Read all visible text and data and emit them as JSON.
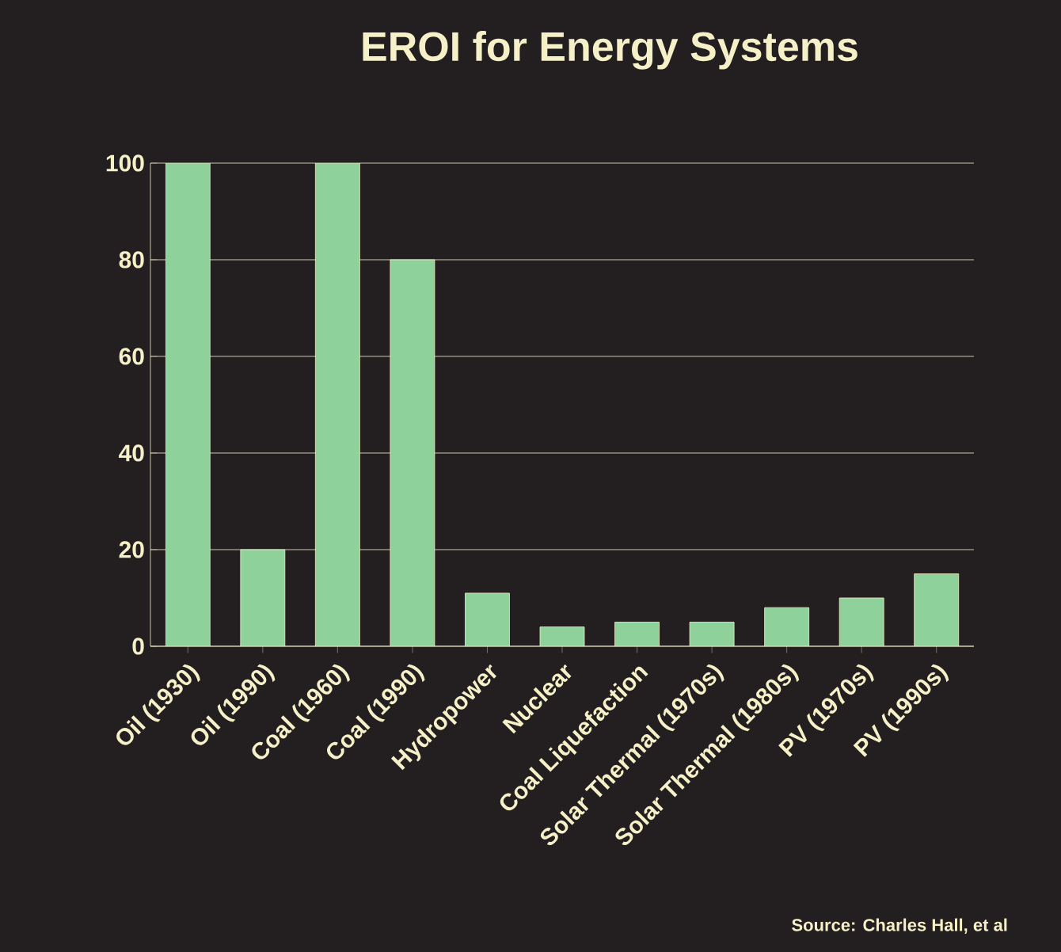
{
  "chart_data": {
    "type": "bar",
    "title": "EROI for Energy Systems",
    "categories": [
      "Oil (1930)",
      "Oil (1990)",
      "Coal (1960)",
      "Coal (1990)",
      "Hydropower",
      "Nuclear",
      "Coal Liquefaction",
      "Solar Thermal (1970s)",
      "Solar Thermal (1980s)",
      "PV (1970s)",
      "PV (1990s)"
    ],
    "values": [
      100,
      20,
      100,
      80,
      11,
      4,
      5,
      5,
      8,
      10,
      15
    ],
    "color": "#8fd19a",
    "ylim": [
      0,
      100
    ],
    "yticks": [
      0,
      20,
      40,
      60,
      80,
      100
    ],
    "grid": "y",
    "annotations": [
      "Source: Charles Hall, et al"
    ]
  }
}
